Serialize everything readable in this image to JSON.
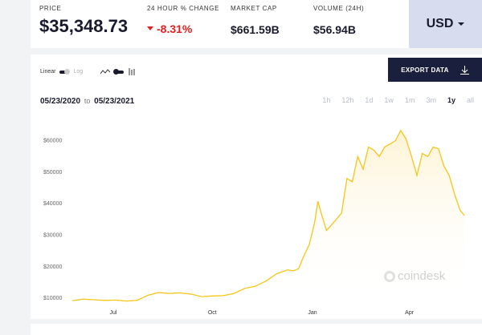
{
  "stats": {
    "price_label": "PRICE",
    "price_value": "$35,348.73",
    "change_label": "24 HOUR % CHANGE",
    "change_value": "-8.31%",
    "mcap_label": "MARKET CAP",
    "mcap_value": "$661.59B",
    "volume_label": "VOLUME (24H)",
    "volume_value": "$56.94B"
  },
  "currency": {
    "selected": "USD"
  },
  "scale_toggle": {
    "linear": "Linear",
    "log": "Log"
  },
  "export": {
    "label": "EXPORT DATA"
  },
  "date_range": {
    "from": "05/23/2020",
    "to_word": "to",
    "to": "05/23/2021"
  },
  "ranges": [
    "1h",
    "12h",
    "1d",
    "1w",
    "1m",
    "3m",
    "1y",
    "all"
  ],
  "active_range": "1y",
  "watermark": "coindesk",
  "colors": {
    "line": "#f5c518",
    "fill": "#fdf3d3",
    "negative": "#e02020",
    "export_bg": "#1a1f3d",
    "usd_bg": "#d7dcef"
  },
  "chart_data": {
    "type": "area",
    "yticks": [
      "$10000",
      "$20000",
      "$30000",
      "$40000",
      "$50000",
      "$60000"
    ],
    "ytick_values": [
      10000,
      20000,
      30000,
      40000,
      50000,
      60000
    ],
    "xticks": [
      "Jul",
      "Oct",
      "Jan",
      "Apr"
    ],
    "xtick_index": [
      38,
      130,
      223,
      313
    ],
    "ylim": [
      9000,
      65000
    ],
    "x_count": 365,
    "values": [
      [
        0,
        9200
      ],
      [
        10,
        9700
      ],
      [
        20,
        9500
      ],
      [
        30,
        9300
      ],
      [
        40,
        9400
      ],
      [
        50,
        9100
      ],
      [
        60,
        9300
      ],
      [
        70,
        10900
      ],
      [
        80,
        11800
      ],
      [
        90,
        11500
      ],
      [
        100,
        11700
      ],
      [
        110,
        11300
      ],
      [
        120,
        10500
      ],
      [
        130,
        10700
      ],
      [
        140,
        10800
      ],
      [
        150,
        11500
      ],
      [
        160,
        13100
      ],
      [
        170,
        13800
      ],
      [
        180,
        15500
      ],
      [
        190,
        17800
      ],
      [
        200,
        19000
      ],
      [
        205,
        18700
      ],
      [
        210,
        19300
      ],
      [
        215,
        23400
      ],
      [
        220,
        27000
      ],
      [
        225,
        34000
      ],
      [
        228,
        40800
      ],
      [
        232,
        36000
      ],
      [
        236,
        31500
      ],
      [
        240,
        33000
      ],
      [
        245,
        35000
      ],
      [
        250,
        37000
      ],
      [
        255,
        48000
      ],
      [
        260,
        47000
      ],
      [
        265,
        55000
      ],
      [
        270,
        51000
      ],
      [
        275,
        58000
      ],
      [
        280,
        57000
      ],
      [
        285,
        55000
      ],
      [
        290,
        58000
      ],
      [
        295,
        59000
      ],
      [
        300,
        60000
      ],
      [
        305,
        63300
      ],
      [
        310,
        60500
      ],
      [
        315,
        55000
      ],
      [
        320,
        49000
      ],
      [
        325,
        56000
      ],
      [
        330,
        55000
      ],
      [
        335,
        58000
      ],
      [
        340,
        57500
      ],
      [
        345,
        52000
      ],
      [
        350,
        49000
      ],
      [
        355,
        43000
      ],
      [
        360,
        38000
      ],
      [
        364,
        36300
      ]
    ]
  }
}
